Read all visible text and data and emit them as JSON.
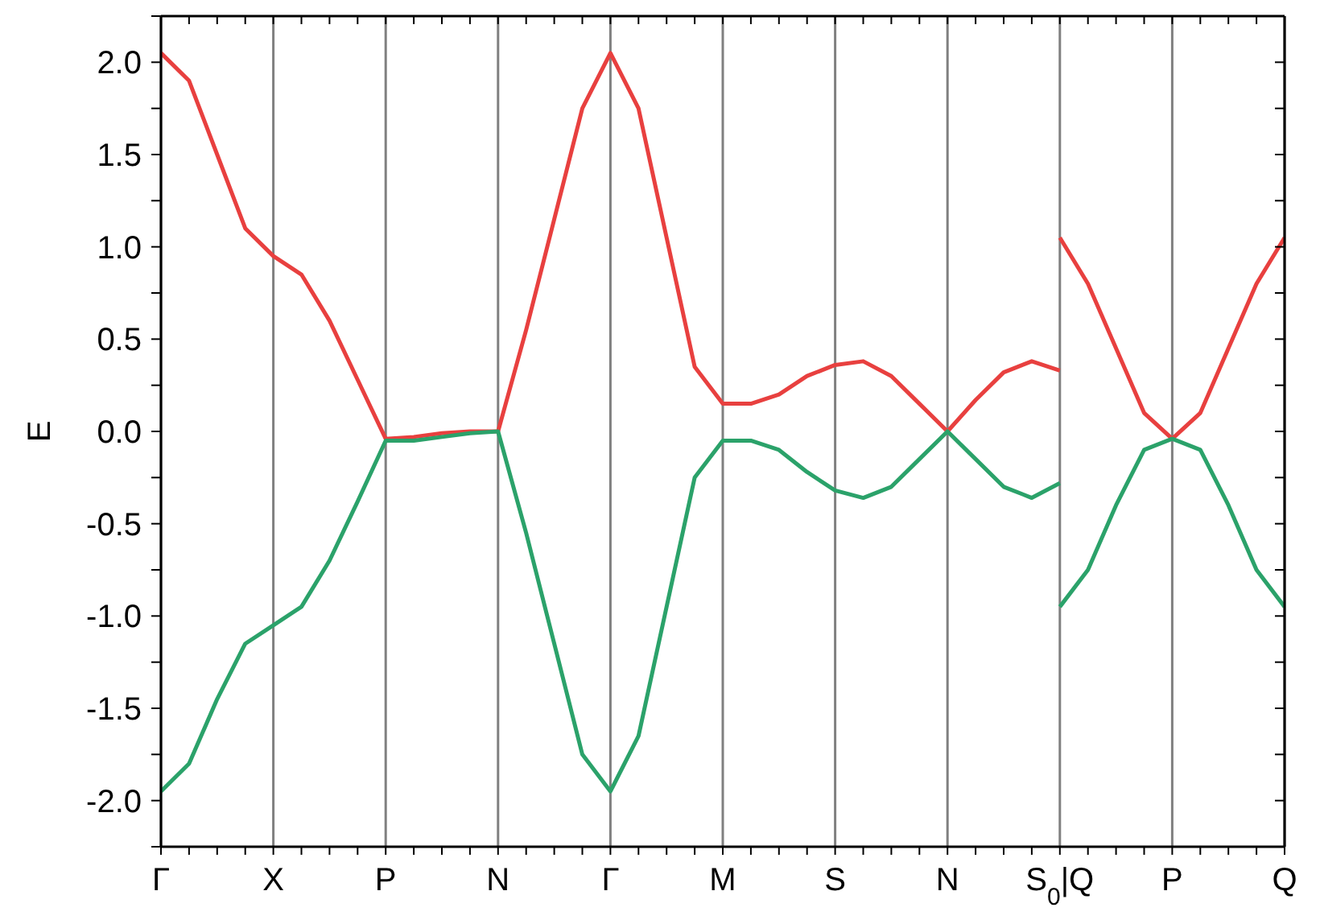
{
  "chart_data": {
    "type": "line",
    "ylabel": "E",
    "categories": [
      "Γ",
      null,
      null,
      null,
      "X",
      null,
      null,
      null,
      "P",
      null,
      null,
      null,
      "N",
      null,
      null,
      null,
      "Γ",
      null,
      null,
      null,
      "M",
      null,
      null,
      null,
      "S",
      null,
      null,
      null,
      "N",
      null,
      null,
      null,
      "S$_{0}$|Q",
      null,
      null,
      null,
      "P",
      null,
      null,
      null,
      "Q"
    ],
    "ylim": [
      -2.25,
      2.25
    ],
    "yticks": [
      {
        "value": -2.25,
        "label": null
      },
      {
        "value": -2,
        "label": "-2.0"
      },
      {
        "value": -1.75,
        "label": null
      },
      -1.5,
      {
        "value": -1.25,
        "label": null
      },
      {
        "value": -1,
        "label": "-1.0"
      },
      {
        "value": -0.75,
        "label": null
      },
      -0.5,
      {
        "value": -0.25,
        "label": null
      },
      {
        "value": 0,
        "label": "0.0"
      },
      {
        "value": 0.25,
        "label": null
      },
      0.5,
      {
        "value": 0.75,
        "label": null
      },
      {
        "value": 1,
        "label": "1.0"
      },
      {
        "value": 1.25,
        "label": null
      },
      1.5,
      {
        "value": 1.75,
        "label": null
      },
      {
        "value": 2,
        "label": "2.0"
      },
      {
        "value": 2.25,
        "label": null
      }
    ],
    "grid": "x",
    "marker": "none",
    "line_style": "solid",
    "series": [
      {
        "color": "#e8403f",
        "values": [
          2.05,
          1.9,
          1.5,
          1.1,
          0.95,
          0.85,
          0.6,
          0.28,
          -0.04,
          -0.03,
          -0.01,
          0.0,
          0.0,
          0.55,
          1.15,
          1.75,
          2.05,
          1.75,
          1.05,
          0.35,
          0.15,
          0.15,
          0.2,
          0.3,
          0.36,
          0.38,
          0.3,
          0.15,
          0.0,
          0.17,
          0.32,
          0.38,
          0.33,
          null,
          null,
          null,
          null,
          null,
          null,
          null,
          null
        ]
      },
      {
        "color": "#e8403f",
        "values": [
          null,
          null,
          null,
          null,
          null,
          null,
          null,
          null,
          null,
          null,
          null,
          null,
          null,
          null,
          null,
          null,
          null,
          null,
          null,
          null,
          null,
          null,
          null,
          null,
          null,
          null,
          null,
          null,
          null,
          null,
          null,
          null,
          1.05,
          0.8,
          0.45,
          0.1,
          -0.04,
          0.1,
          0.45,
          0.8,
          1.05
        ]
      },
      {
        "color": "#2ba26a",
        "values": [
          -1.95,
          -1.8,
          -1.45,
          -1.15,
          -1.05,
          -0.95,
          -0.7,
          -0.38,
          -0.05,
          -0.05,
          -0.03,
          -0.01,
          0.0,
          -0.55,
          -1.15,
          -1.75,
          -1.95,
          -1.65,
          -0.95,
          -0.25,
          -0.05,
          -0.05,
          -0.1,
          -0.22,
          -0.32,
          -0.36,
          -0.3,
          -0.15,
          0.0,
          -0.15,
          -0.3,
          -0.36,
          -0.28,
          null,
          null,
          null,
          null,
          null,
          null,
          null,
          null
        ]
      },
      {
        "color": "#2ba26a",
        "values": [
          null,
          null,
          null,
          null,
          null,
          null,
          null,
          null,
          null,
          null,
          null,
          null,
          null,
          null,
          null,
          null,
          null,
          null,
          null,
          null,
          null,
          null,
          null,
          null,
          null,
          null,
          null,
          null,
          null,
          null,
          null,
          null,
          -0.95,
          -0.75,
          -0.4,
          -0.1,
          -0.04,
          -0.1,
          -0.4,
          -0.75,
          -0.95
        ]
      }
    ]
  }
}
